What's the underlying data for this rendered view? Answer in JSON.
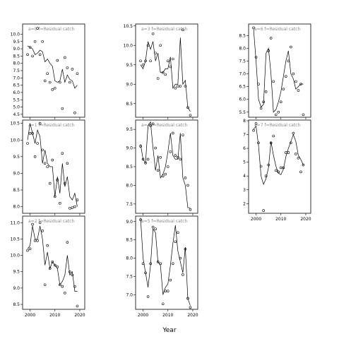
{
  "chart_data": {
    "type": "line",
    "xlabel": "Year",
    "xlim": [
      1997,
      2022
    ],
    "xticks": [
      2000,
      2010,
      2020
    ],
    "line_color": "#000000",
    "point_color": "#000000",
    "panels": [
      {
        "id": "a0",
        "label": "a=0",
        "sublabel": "f=Residual catch",
        "ylim": [
          4.3,
          10.7
        ],
        "yticks": [
          4.5,
          5,
          5.5,
          6,
          6.5,
          7,
          7.5,
          8,
          8.5,
          9,
          9.5,
          10
        ],
        "line": {
          "x": [
            1999,
            2000,
            2001,
            2002,
            2003,
            2004,
            2005,
            2006,
            2007,
            2008,
            2009,
            2010,
            2011,
            2012,
            2013,
            2014,
            2015,
            2016,
            2017,
            2018,
            2019
          ],
          "y": [
            9.2,
            9.1,
            9.0,
            8.6,
            8.7,
            8.9,
            8.8,
            8.1,
            8.3,
            8.0,
            7.8,
            6.8,
            6.7,
            6.8,
            7.6,
            6.7,
            7.2,
            6.9,
            6.8,
            6.3,
            6.5
          ]
        },
        "points": {
          "x": [
            1999,
            2000,
            2001,
            2002,
            2003,
            2004,
            2005,
            2006,
            2007,
            2008,
            2009,
            2010,
            2011,
            2012,
            2013,
            2014,
            2015,
            2016,
            2017,
            2018,
            2019
          ],
          "y": [
            8.6,
            9.1,
            8.5,
            9.5,
            10.4,
            8.6,
            9.5,
            6.8,
            7.3,
            6.7,
            6.2,
            6.3,
            8.2,
            6.7,
            4.9,
            8.4,
            7.7,
            6.7,
            7.6,
            4.6,
            7.3
          ]
        }
      },
      {
        "id": "a1",
        "label": "a=1",
        "sublabel": "f=Residual catch",
        "ylim": [
          7.8,
          10.6
        ],
        "yticks": [
          8.0,
          8.5,
          9.0,
          9.5,
          10.0,
          10.5
        ],
        "line": {
          "x": [
            1999,
            2000,
            2001,
            2002,
            2003,
            2004,
            2005,
            2006,
            2007,
            2008,
            2009,
            2010,
            2011,
            2012,
            2013,
            2014,
            2015,
            2016,
            2017,
            2018,
            2019
          ],
          "y": [
            10.0,
            10.5,
            10.2,
            9.9,
            10.3,
            10.1,
            9.3,
            9.7,
            9.3,
            9.2,
            9.2,
            8.3,
            8.9,
            8.4,
            9.3,
            8.6,
            8.9,
            8.3,
            8.2,
            8.4,
            8.0
          ]
        },
        "points": {
          "x": [
            1999,
            2000,
            2001,
            2002,
            2003,
            2004,
            2005,
            2006,
            2007,
            2008,
            2009,
            2010,
            2011,
            2012,
            2013,
            2014,
            2015,
            2016,
            2017,
            2018,
            2019
          ],
          "y": [
            9.9,
            10.2,
            10.2,
            9.5,
            9.9,
            10.5,
            9.7,
            9.3,
            9.2,
            8.7,
            9.4,
            8.3,
            8.8,
            8.1,
            9.6,
            8.7,
            9.3,
            7.95,
            7.97,
            8.0,
            8.2
          ]
        }
      },
      {
        "id": "a2",
        "label": "a=2",
        "sublabel": "f=Residual catch",
        "ylim": [
          8.35,
          11.2
        ],
        "yticks": [
          8.5,
          9.0,
          9.5,
          10.0,
          10.5,
          11.0
        ],
        "line": {
          "x": [
            1999,
            2000,
            2001,
            2002,
            2003,
            2004,
            2005,
            2006,
            2007,
            2008,
            2009,
            2010,
            2011,
            2012,
            2013,
            2014,
            2015,
            2016,
            2017,
            2018,
            2019
          ],
          "y": [
            10.2,
            10.3,
            10.9,
            10.5,
            10.5,
            10.9,
            10.5,
            9.7,
            10.1,
            9.6,
            9.8,
            9.7,
            9.6,
            9.1,
            9.2,
            9.4,
            10.0,
            9.4,
            9.5,
            8.9,
            8.9
          ]
        },
        "points": {
          "x": [
            1999,
            2000,
            2001,
            2002,
            2003,
            2004,
            2005,
            2006,
            2007,
            2008,
            2009,
            2010,
            2011,
            2012,
            2013,
            2014,
            2015,
            2016,
            2017,
            2018,
            2019
          ],
          "y": [
            10.15,
            10.2,
            10.95,
            10.45,
            10.45,
            11.0,
            10.75,
            9.1,
            10.3,
            9.6,
            9.8,
            9.7,
            9.65,
            9.1,
            9.05,
            8.85,
            10.4,
            9.5,
            9.4,
            9.05,
            8.45
          ]
        }
      },
      {
        "id": "a3",
        "label": "a=3",
        "sublabel": "f=Residual catch",
        "ylim": [
          8.15,
          10.55
        ],
        "yticks": [
          8.5,
          9.0,
          9.5,
          10.0,
          10.5
        ],
        "line": {
          "x": [
            1999,
            2000,
            2001,
            2002,
            2003,
            2004,
            2005,
            2006,
            2007,
            2008,
            2009,
            2010,
            2011,
            2012,
            2013,
            2014,
            2015,
            2016,
            2017,
            2018,
            2019
          ],
          "y": [
            9.5,
            9.4,
            9.6,
            10.1,
            9.9,
            10.1,
            9.6,
            9.8,
            9.3,
            9.3,
            9.4,
            9.4,
            9.7,
            8.9,
            9.0,
            9.0,
            10.2,
            9.0,
            9.1,
            8.4,
            8.3
          ]
        },
        "points": {
          "x": [
            1999,
            2000,
            2001,
            2002,
            2003,
            2004,
            2005,
            2006,
            2007,
            2008,
            2009,
            2010,
            2011,
            2012,
            2013,
            2014,
            2015,
            2016,
            2017,
            2018,
            2019
          ],
          "y": [
            9.6,
            9.5,
            9.6,
            10.0,
            9.6,
            10.3,
            9.8,
            9.15,
            10.0,
            9.3,
            9.25,
            9.6,
            9.45,
            9.65,
            8.9,
            8.95,
            8.95,
            10.4,
            8.95,
            8.4,
            8.2
          ]
        }
      },
      {
        "id": "a4",
        "label": "a=4",
        "sublabel": "f=Residual catch",
        "ylim": [
          7.25,
          9.75
        ],
        "yticks": [
          7.5,
          8.0,
          8.5,
          9.0,
          9.5
        ],
        "line": {
          "x": [
            1999,
            2000,
            2001,
            2002,
            2003,
            2004,
            2005,
            2006,
            2007,
            2008,
            2009,
            2010,
            2011,
            2012,
            2013,
            2014,
            2015,
            2016,
            2017,
            2018,
            2019
          ],
          "y": [
            9.1,
            8.7,
            8.6,
            9.6,
            9.7,
            9.0,
            8.4,
            8.8,
            8.2,
            8.3,
            8.5,
            8.9,
            9.4,
            8.8,
            8.7,
            8.7,
            9.4,
            8.2,
            8.0,
            7.4,
            7.4
          ]
        },
        "points": {
          "x": [
            1999,
            2000,
            2001,
            2002,
            2003,
            2004,
            2005,
            2006,
            2007,
            2008,
            2009,
            2010,
            2011,
            2012,
            2013,
            2014,
            2015,
            2016,
            2017,
            2018,
            2019
          ],
          "y": [
            9.05,
            8.7,
            8.6,
            8.7,
            9.6,
            9.65,
            9.0,
            8.4,
            8.75,
            8.25,
            8.3,
            8.5,
            8.9,
            9.4,
            8.8,
            8.75,
            8.7,
            9.35,
            8.2,
            8.0,
            7.35
          ]
        }
      },
      {
        "id": "a5",
        "label": "a=5",
        "sublabel": "f=Residual catch",
        "ylim": [
          6.6,
          9.15
        ],
        "yticks": [
          7.0,
          7.5,
          8.0,
          8.5,
          9.0
        ],
        "line": {
          "x": [
            1999,
            2000,
            2001,
            2002,
            2003,
            2004,
            2005,
            2006,
            2007,
            2008,
            2009,
            2010,
            2011,
            2012,
            2013,
            2014,
            2015,
            2016,
            2017,
            2018,
            2019
          ],
          "y": [
            9.1,
            8.0,
            7.6,
            7.2,
            7.8,
            8.8,
            8.7,
            7.9,
            7.8,
            7.0,
            7.2,
            7.3,
            7.8,
            8.4,
            8.9,
            8.2,
            7.9,
            7.6,
            8.3,
            6.9,
            6.7
          ]
        },
        "points": {
          "x": [
            1999,
            2000,
            2001,
            2002,
            2003,
            2004,
            2005,
            2006,
            2007,
            2008,
            2009,
            2010,
            2011,
            2012,
            2013,
            2014,
            2015,
            2016,
            2017,
            2018,
            2019
          ],
          "y": [
            9.05,
            7.85,
            7.6,
            6.95,
            7.85,
            8.85,
            8.8,
            7.9,
            7.85,
            6.75,
            7.1,
            7.1,
            7.4,
            7.85,
            8.45,
            8.7,
            8.0,
            7.55,
            8.25,
            6.9,
            6.65
          ]
        }
      },
      {
        "id": "a6",
        "label": "a=6",
        "sublabel": "f=Residual catch",
        "ylim": [
          5.3,
          8.95
        ],
        "yticks": [
          5.5,
          6.0,
          6.5,
          7.0,
          7.5,
          8.0,
          8.5
        ],
        "line": {
          "x": [
            1999,
            2000,
            2001,
            2002,
            2003,
            2004,
            2005,
            2006,
            2007,
            2008,
            2009,
            2010,
            2011,
            2012,
            2013,
            2014,
            2015,
            2016,
            2017,
            2018,
            2019
          ],
          "y": [
            8.75,
            7.5,
            6.0,
            5.7,
            5.8,
            7.8,
            8.0,
            7.0,
            5.5,
            5.6,
            5.9,
            6.3,
            6.9,
            7.5,
            7.9,
            7.0,
            6.8,
            6.4,
            6.5,
            6.6,
            6.6
          ]
        },
        "points": {
          "x": [
            1999,
            2000,
            2001,
            2002,
            2003,
            2004,
            2005,
            2006,
            2007,
            2008,
            2009,
            2010,
            2011,
            2012,
            2013,
            2014,
            2015,
            2016,
            2017,
            2018,
            2019
          ],
          "y": [
            8.8,
            7.65,
            6.6,
            5.65,
            5.9,
            6.3,
            7.9,
            8.4,
            6.7,
            5.4,
            5.5,
            5.9,
            6.4,
            6.9,
            7.5,
            8.05,
            7.0,
            6.7,
            6.35,
            6.6,
            5.4
          ]
        }
      },
      {
        "id": "a7",
        "label": "a=7",
        "sublabel": "f=Residual catch",
        "ylim": [
          1.3,
          8.05
        ],
        "yticks": [
          2,
          3,
          4,
          5,
          6,
          7,
          8
        ],
        "line": {
          "x": [
            1999,
            2000,
            2001,
            2002,
            2003,
            2004,
            2005,
            2006,
            2007,
            2008,
            2009,
            2010,
            2011,
            2012,
            2013,
            2014,
            2015,
            2016,
            2017,
            2018,
            2019
          ],
          "y": [
            7.4,
            7.6,
            6.2,
            4.0,
            3.4,
            3.8,
            4.6,
            6.5,
            5.5,
            4.7,
            4.2,
            4.1,
            4.5,
            5.4,
            6.0,
            6.5,
            7.0,
            6.5,
            5.5,
            5.2,
            4.8
          ]
        },
        "points": {
          "x": [
            1999,
            2000,
            2001,
            2002,
            2003,
            2004,
            2005,
            2006,
            2007,
            2008,
            2009,
            2010,
            2011,
            2012,
            2013,
            2014,
            2015,
            2016,
            2017,
            2018,
            2019
          ],
          "y": [
            7.3,
            7.8,
            6.4,
            4.7,
            1.5,
            4.0,
            4.8,
            6.4,
            6.9,
            4.4,
            4.3,
            4.6,
            4.6,
            5.7,
            5.7,
            6.4,
            7.1,
            5.6,
            5.3,
            4.3,
            4.8
          ]
        }
      }
    ]
  }
}
